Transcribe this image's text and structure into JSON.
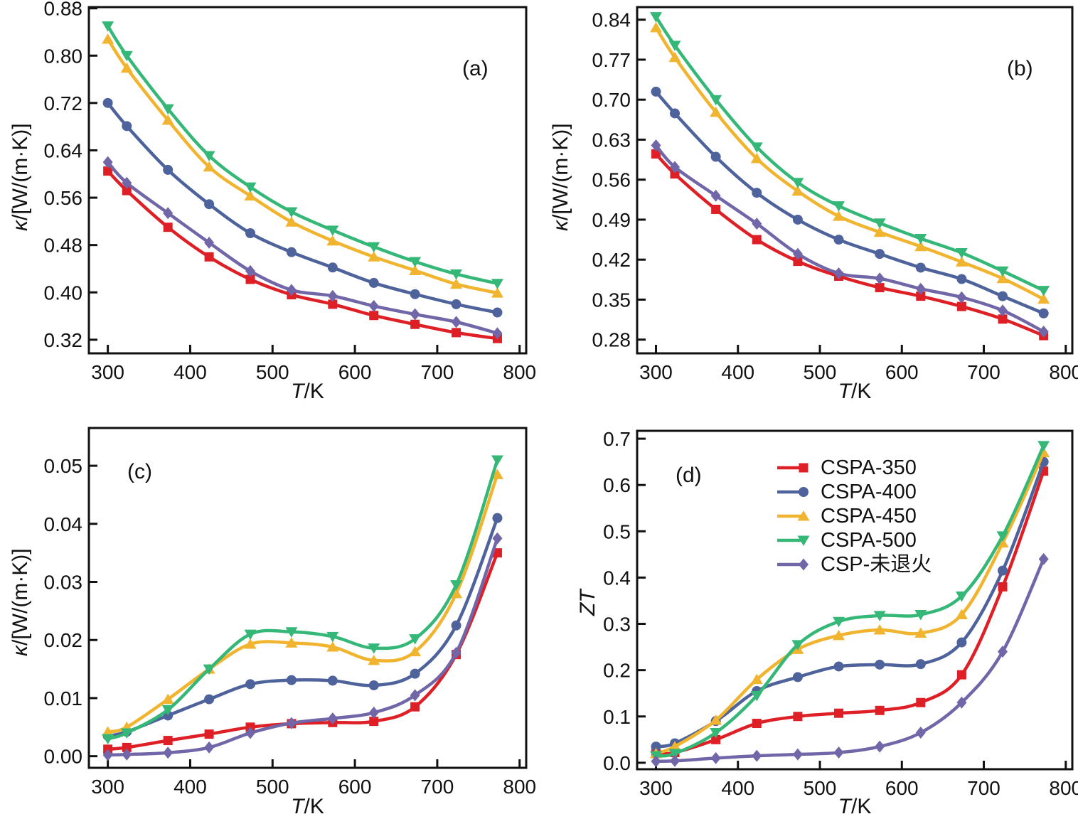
{
  "legend": {
    "items": [
      {
        "label": "CSPA-350",
        "color": "#df1f26",
        "marker": "square"
      },
      {
        "label": "CSPA-400",
        "color": "#4e629b",
        "marker": "circle"
      },
      {
        "label": "CSPA-450",
        "color": "#f1b42f",
        "marker": "triangle-up"
      },
      {
        "label": "CSPA-500",
        "color": "#35b877",
        "marker": "triangle-down"
      },
      {
        "label": "CSP-未退火",
        "color": "#7066a8",
        "marker": "diamond"
      }
    ]
  },
  "chart_data": [
    {
      "id": "a",
      "type": "line",
      "panel_label": "(a)",
      "xlabel_italic": "T",
      "xlabel_rest": "/K",
      "ylabel_italic": "κ",
      "ylabel_rest": "/[W/(m·K)]",
      "xlim": [
        277,
        808
      ],
      "ylim": [
        0.297,
        0.882
      ],
      "grid": false,
      "legend_position": "none",
      "xticks": {
        "values": [
          300,
          400,
          500,
          600,
          700,
          800
        ],
        "labels": [
          "300",
          "400",
          "500",
          "600",
          "700",
          "800"
        ]
      },
      "yticks": {
        "values": [
          0.32,
          0.4,
          0.48,
          0.56,
          0.64,
          0.72,
          0.8,
          0.88
        ],
        "labels": [
          "0.32",
          "0.40",
          "0.48",
          "0.56",
          "0.64",
          "0.72",
          "0.80",
          "0.88"
        ]
      },
      "x": [
        300,
        323,
        373,
        423,
        473,
        523,
        573,
        623,
        673,
        723,
        773
      ],
      "series": [
        {
          "name": "CSPA-350",
          "color": "#df1f26",
          "marker": "square",
          "values": [
            0.605,
            0.572,
            0.51,
            0.46,
            0.422,
            0.396,
            0.38,
            0.361,
            0.346,
            0.332,
            0.322
          ]
        },
        {
          "name": "CSPA-400",
          "color": "#4e629b",
          "marker": "circle",
          "values": [
            0.72,
            0.681,
            0.607,
            0.549,
            0.5,
            0.468,
            0.442,
            0.416,
            0.397,
            0.38,
            0.366
          ]
        },
        {
          "name": "CSPA-450",
          "color": "#f1b42f",
          "marker": "triangle-up",
          "values": [
            0.828,
            0.779,
            0.691,
            0.612,
            0.563,
            0.519,
            0.487,
            0.46,
            0.437,
            0.414,
            0.399
          ]
        },
        {
          "name": "CSPA-500",
          "color": "#35b877",
          "marker": "triangle-down",
          "values": [
            0.85,
            0.8,
            0.71,
            0.631,
            0.578,
            0.536,
            0.505,
            0.477,
            0.452,
            0.431,
            0.415
          ]
        },
        {
          "name": "CSP-未退火",
          "color": "#7066a8",
          "marker": "diamond",
          "values": [
            0.62,
            0.585,
            0.534,
            0.484,
            0.436,
            0.404,
            0.394,
            0.377,
            0.363,
            0.35,
            0.331
          ]
        }
      ]
    },
    {
      "id": "b",
      "type": "line",
      "panel_label": "(b)",
      "xlabel_italic": "T",
      "xlabel_rest": "/K",
      "ylabel_italic": "κ",
      "ylabel_rest": "/[W/(m·K)]",
      "xlim": [
        277,
        808
      ],
      "ylim": [
        0.256,
        0.862
      ],
      "grid": false,
      "legend_position": "none",
      "xticks": {
        "values": [
          300,
          400,
          500,
          600,
          700,
          800
        ],
        "labels": [
          "300",
          "400",
          "500",
          "600",
          "700",
          "800"
        ]
      },
      "yticks": {
        "values": [
          0.28,
          0.35,
          0.42,
          0.49,
          0.56,
          0.63,
          0.7,
          0.77,
          0.84
        ],
        "labels": [
          "0.28",
          "0.35",
          "0.42",
          "0.49",
          "0.56",
          "0.63",
          "0.70",
          "0.77",
          "0.84"
        ]
      },
      "x": [
        300,
        323,
        373,
        423,
        473,
        523,
        573,
        623,
        673,
        723,
        773
      ],
      "series": [
        {
          "name": "CSPA-350",
          "color": "#df1f26",
          "marker": "square",
          "values": [
            0.605,
            0.57,
            0.508,
            0.455,
            0.417,
            0.391,
            0.371,
            0.356,
            0.338,
            0.316,
            0.287
          ]
        },
        {
          "name": "CSPA-400",
          "color": "#4e629b",
          "marker": "circle",
          "values": [
            0.714,
            0.676,
            0.6,
            0.537,
            0.49,
            0.455,
            0.43,
            0.406,
            0.386,
            0.356,
            0.326
          ]
        },
        {
          "name": "CSPA-450",
          "color": "#f1b42f",
          "marker": "triangle-up",
          "values": [
            0.826,
            0.774,
            0.678,
            0.597,
            0.54,
            0.496,
            0.468,
            0.443,
            0.416,
            0.387,
            0.351
          ]
        },
        {
          "name": "CSPA-500",
          "color": "#35b877",
          "marker": "triangle-down",
          "values": [
            0.845,
            0.795,
            0.7,
            0.617,
            0.555,
            0.514,
            0.484,
            0.457,
            0.432,
            0.4,
            0.366
          ]
        },
        {
          "name": "CSP-未退火",
          "color": "#7066a8",
          "marker": "diamond",
          "values": [
            0.62,
            0.582,
            0.532,
            0.483,
            0.43,
            0.396,
            0.387,
            0.369,
            0.354,
            0.331,
            0.294
          ]
        }
      ]
    },
    {
      "id": "c",
      "type": "line",
      "panel_label": "(c)",
      "xlabel_italic": "T",
      "xlabel_rest": "/K",
      "ylabel_italic": "κ",
      "ylabel_rest": "/[W/(m·K)]",
      "xlim": [
        277,
        808
      ],
      "ylim": [
        -0.002,
        0.0565
      ],
      "grid": false,
      "legend_position": "none",
      "xticks": {
        "values": [
          300,
          400,
          500,
          600,
          700,
          800
        ],
        "labels": [
          "300",
          "400",
          "500",
          "600",
          "700",
          "800"
        ]
      },
      "yticks": {
        "values": [
          0.0,
          0.01,
          0.02,
          0.03,
          0.04,
          0.05
        ],
        "labels": [
          "0.00",
          "0.01",
          "0.02",
          "0.03",
          "0.04",
          "0.05"
        ]
      },
      "x": [
        300,
        323,
        373,
        423,
        473,
        523,
        573,
        623,
        673,
        723,
        773
      ],
      "series": [
        {
          "name": "CSPA-350",
          "color": "#df1f26",
          "marker": "square",
          "values": [
            0.0012,
            0.0015,
            0.0027,
            0.0038,
            0.005,
            0.0056,
            0.0058,
            0.006,
            0.0085,
            0.0175,
            0.035
          ]
        },
        {
          "name": "CSPA-400",
          "color": "#4e629b",
          "marker": "circle",
          "values": [
            0.0035,
            0.0042,
            0.007,
            0.0098,
            0.0124,
            0.0131,
            0.013,
            0.0122,
            0.0142,
            0.0225,
            0.041
          ]
        },
        {
          "name": "CSPA-450",
          "color": "#f1b42f",
          "marker": "triangle-up",
          "values": [
            0.0042,
            0.005,
            0.0098,
            0.015,
            0.0193,
            0.0195,
            0.0188,
            0.0165,
            0.018,
            0.028,
            0.0485
          ]
        },
        {
          "name": "CSPA-500",
          "color": "#35b877",
          "marker": "triangle-down",
          "values": [
            0.003,
            0.004,
            0.008,
            0.015,
            0.021,
            0.0214,
            0.0206,
            0.0186,
            0.0202,
            0.0295,
            0.051
          ]
        },
        {
          "name": "CSP-未退火",
          "color": "#7066a8",
          "marker": "diamond",
          "values": [
            0.0002,
            0.0003,
            0.0006,
            0.0015,
            0.004,
            0.0057,
            0.0065,
            0.0075,
            0.0105,
            0.0178,
            0.0375
          ]
        }
      ]
    },
    {
      "id": "d",
      "type": "line",
      "panel_label": "(d)",
      "xlabel_italic": "T",
      "xlabel_rest": "/K",
      "ylabel_italic": "ZT",
      "ylabel_rest": "",
      "xlim": [
        277,
        808
      ],
      "ylim": [
        -0.014,
        0.717
      ],
      "grid": false,
      "legend_position": "upper-middle",
      "xticks": {
        "values": [
          300,
          400,
          500,
          600,
          700,
          800
        ],
        "labels": [
          "300",
          "400",
          "500",
          "600",
          "700",
          "800"
        ]
      },
      "yticks": {
        "values": [
          0.0,
          0.1,
          0.2,
          0.3,
          0.4,
          0.5,
          0.6,
          0.7
        ],
        "labels": [
          "0.0",
          "0.1",
          "0.2",
          "0.3",
          "0.4",
          "0.5",
          "0.6",
          "0.7"
        ]
      },
      "x": [
        300,
        323,
        373,
        423,
        473,
        523,
        573,
        623,
        673,
        723,
        773
      ],
      "series": [
        {
          "name": "CSPA-350",
          "color": "#df1f26",
          "marker": "square",
          "values": [
            0.02,
            0.022,
            0.05,
            0.085,
            0.1,
            0.107,
            0.113,
            0.13,
            0.19,
            0.38,
            0.63
          ]
        },
        {
          "name": "CSPA-400",
          "color": "#4e629b",
          "marker": "circle",
          "values": [
            0.035,
            0.042,
            0.09,
            0.155,
            0.185,
            0.208,
            0.212,
            0.213,
            0.26,
            0.415,
            0.65
          ]
        },
        {
          "name": "CSPA-450",
          "color": "#f1b42f",
          "marker": "triangle-up",
          "values": [
            0.02,
            0.035,
            0.092,
            0.18,
            0.245,
            0.275,
            0.287,
            0.28,
            0.32,
            0.475,
            0.67
          ]
        },
        {
          "name": "CSPA-500",
          "color": "#35b877",
          "marker": "triangle-down",
          "values": [
            0.015,
            0.02,
            0.065,
            0.145,
            0.255,
            0.305,
            0.318,
            0.32,
            0.36,
            0.49,
            0.685
          ]
        },
        {
          "name": "CSP-未退火",
          "color": "#7066a8",
          "marker": "diamond",
          "values": [
            0.003,
            0.004,
            0.01,
            0.015,
            0.018,
            0.022,
            0.035,
            0.065,
            0.13,
            0.24,
            0.44
          ]
        }
      ]
    }
  ]
}
